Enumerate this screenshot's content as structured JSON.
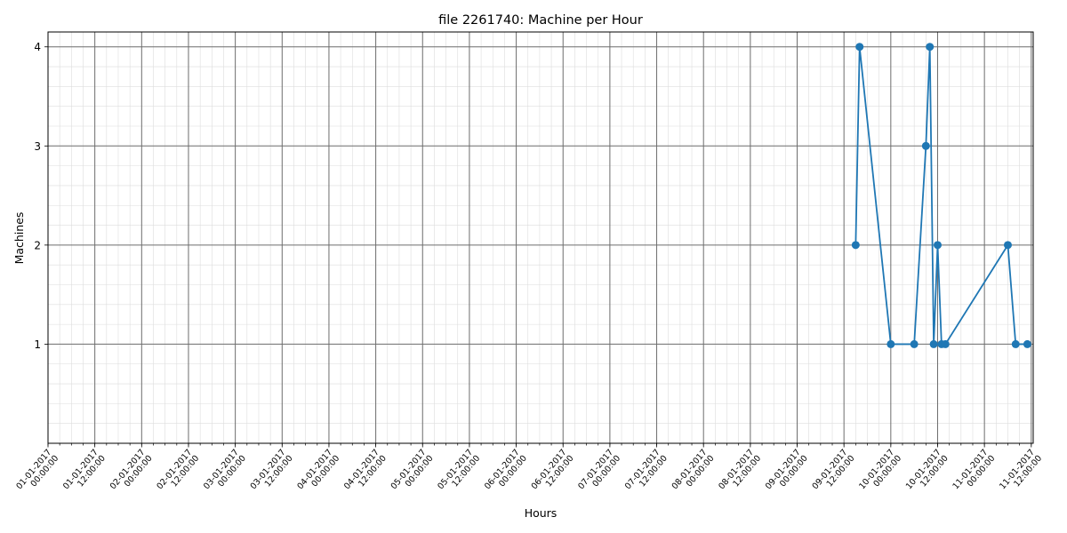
{
  "chart_data": {
    "type": "line",
    "title": "file 2261740: Machine per Hour",
    "xlabel": "Hours",
    "ylabel": "Machines",
    "x_tick_labels": [
      [
        "01-01-2017",
        "00:00:00"
      ],
      [
        "01-01-2017",
        "12:00:00"
      ],
      [
        "02-01-2017",
        "00:00:00"
      ],
      [
        "02-01-2017",
        "12:00:00"
      ],
      [
        "03-01-2017",
        "00:00:00"
      ],
      [
        "03-01-2017",
        "12:00:00"
      ],
      [
        "04-01-2017",
        "00:00:00"
      ],
      [
        "04-01-2017",
        "12:00:00"
      ],
      [
        "05-01-2017",
        "00:00:00"
      ],
      [
        "05-01-2017",
        "12:00:00"
      ],
      [
        "06-01-2017",
        "00:00:00"
      ],
      [
        "06-01-2017",
        "12:00:00"
      ],
      [
        "07-01-2017",
        "00:00:00"
      ],
      [
        "07-01-2017",
        "12:00:00"
      ],
      [
        "08-01-2017",
        "00:00:00"
      ],
      [
        "08-01-2017",
        "12:00:00"
      ],
      [
        "09-01-2017",
        "00:00:00"
      ],
      [
        "09-01-2017",
        "12:00:00"
      ],
      [
        "10-01-2017",
        "00:00:00"
      ],
      [
        "10-01-2017",
        "12:00:00"
      ],
      [
        "11-01-2017",
        "00:00:00"
      ],
      [
        "11-01-2017",
        "12:00:00"
      ]
    ],
    "y_ticks": [
      1,
      2,
      3,
      4
    ],
    "ylim": [
      0,
      4.15
    ],
    "xlim": [
      "01-01-2017 00:00:00",
      "11-01-2017 12:30:00"
    ],
    "grid": true,
    "minor_grid": true,
    "color": "#1f77b4",
    "series": [
      {
        "x": [
          "09-01-2017 15:00:00",
          "09-01-2017 16:00:00",
          "10-01-2017 00:00:00",
          "10-01-2017 06:00:00",
          "10-01-2017 09:00:00",
          "10-01-2017 10:00:00",
          "10-01-2017 11:00:00",
          "10-01-2017 12:00:00",
          "10-01-2017 13:00:00",
          "10-01-2017 14:00:00",
          "11-01-2017 06:00:00",
          "11-01-2017 08:00:00",
          "11-01-2017 11:00:00"
        ],
        "y": [
          2,
          4,
          1,
          1,
          3,
          4,
          1,
          2,
          1,
          1,
          2,
          1,
          1
        ]
      }
    ]
  }
}
